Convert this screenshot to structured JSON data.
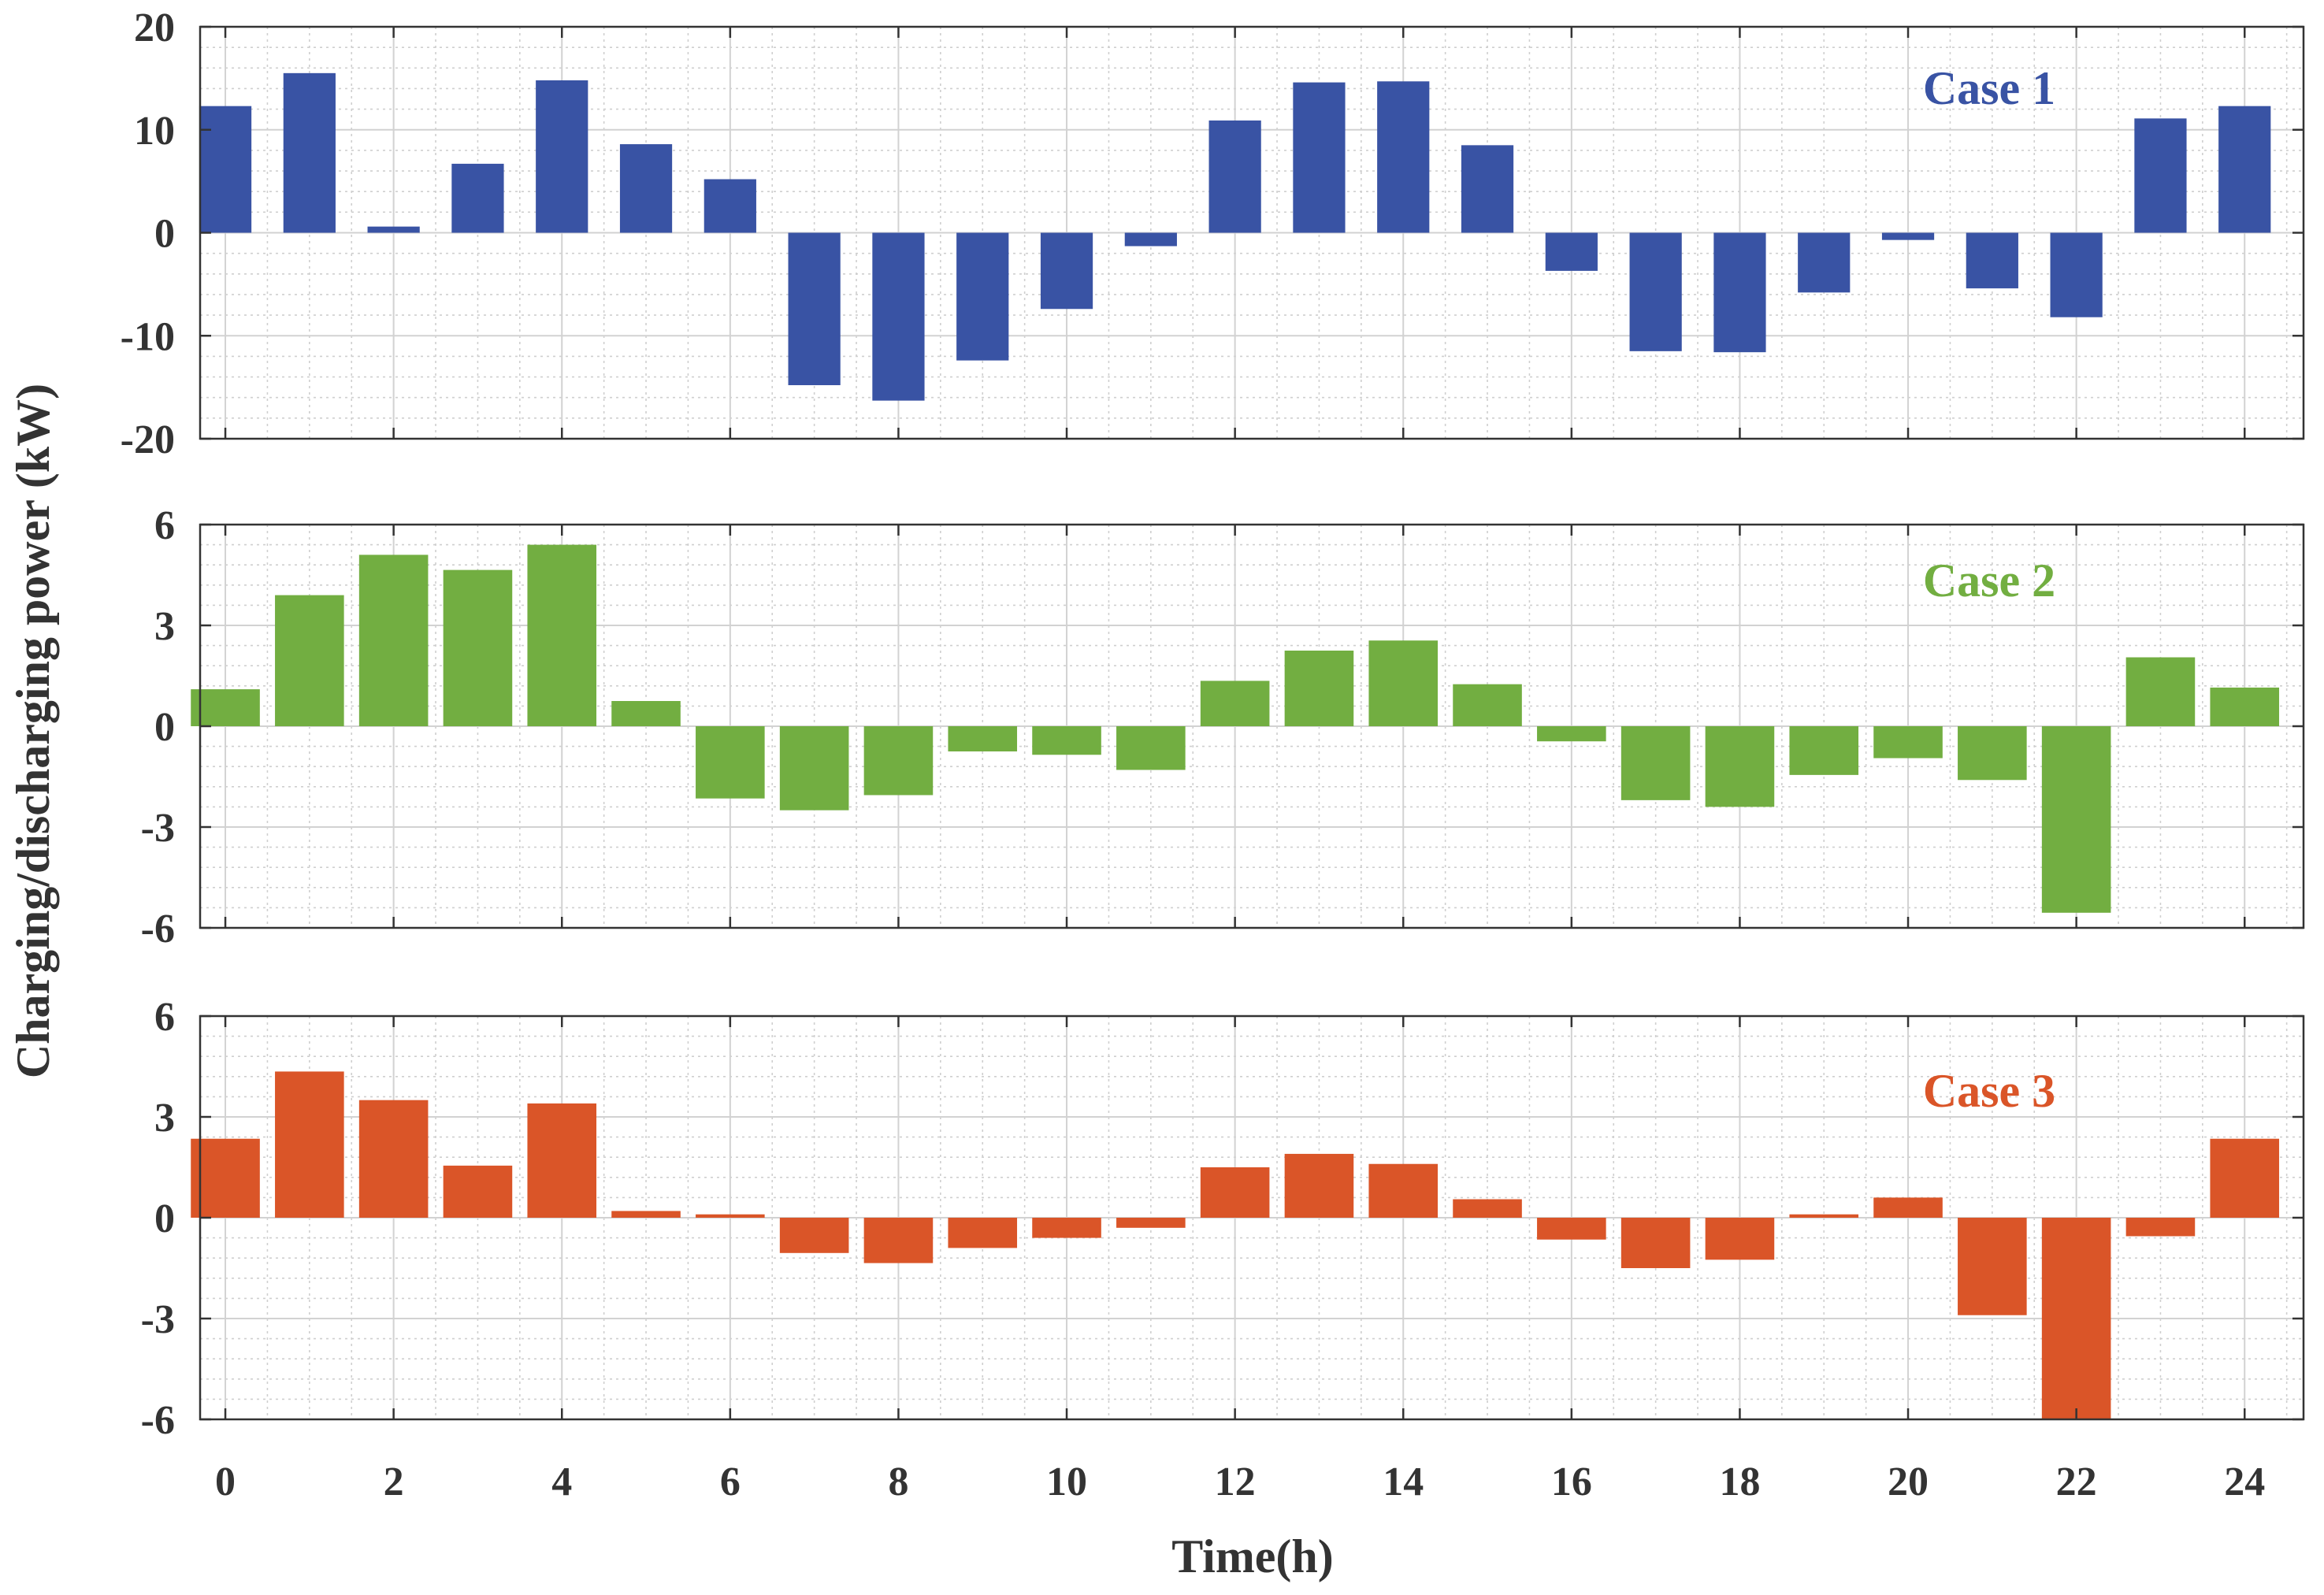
{
  "chart_data": {
    "type": "bar",
    "xlabel": "Time(h)",
    "ylabel": "Charging/discharging power (kW)",
    "x": [
      0,
      1,
      2,
      3,
      4,
      5,
      6,
      7,
      8,
      9,
      10,
      11,
      12,
      13,
      14,
      15,
      16,
      17,
      18,
      19,
      20,
      21,
      22,
      23,
      24
    ],
    "xlim": [
      -0.3,
      24.7
    ],
    "xticks": [
      "0",
      "2",
      "4",
      "6",
      "8",
      "10",
      "12",
      "14",
      "16",
      "18",
      "20",
      "22",
      "24"
    ],
    "grid": true,
    "colors": {
      "axis": "#333333",
      "text": "#333333",
      "grid_major": "#d2d2d2",
      "grid_minor": "#cfcfcf"
    },
    "panels": [
      {
        "name": "Case 1",
        "color": "#3953A4",
        "ylim": [
          -20,
          20
        ],
        "yticks": [
          "20",
          "10",
          "0",
          "-10",
          "-20"
        ],
        "bar_width": 0.62,
        "values": [
          12.3,
          15.5,
          0.6,
          6.7,
          14.8,
          8.6,
          5.2,
          -14.8,
          -16.3,
          -12.4,
          -7.4,
          -1.3,
          10.9,
          14.6,
          14.7,
          8.5,
          -3.7,
          -11.5,
          -11.6,
          -5.8,
          -0.7,
          -5.4,
          -8.2,
          11.1,
          12.3
        ]
      },
      {
        "name": "Case 2",
        "color": "#72AE41",
        "ylim": [
          -6,
          6
        ],
        "yticks": [
          "6",
          "3",
          "0",
          "-3",
          "-6"
        ],
        "bar_width": 0.82,
        "values": [
          1.1,
          3.9,
          5.1,
          4.65,
          5.4,
          0.75,
          -2.15,
          -2.5,
          -2.05,
          -0.75,
          -0.85,
          -1.3,
          1.35,
          2.25,
          2.55,
          1.25,
          -0.45,
          -2.2,
          -2.4,
          -1.45,
          -0.95,
          -1.6,
          -5.55,
          2.05,
          1.15
        ]
      },
      {
        "name": "Case 3",
        "color": "#DA5528",
        "ylim": [
          -6,
          6
        ],
        "yticks": [
          "6",
          "3",
          "0",
          "-3",
          "-6"
        ],
        "bar_width": 0.82,
        "values": [
          2.35,
          4.35,
          3.5,
          1.55,
          3.4,
          0.2,
          0.1,
          -1.05,
          -1.35,
          -0.9,
          -0.6,
          -0.3,
          1.5,
          1.9,
          1.6,
          0.55,
          -0.65,
          -1.5,
          -1.25,
          0.1,
          0.6,
          -2.9,
          -6.0,
          -0.55,
          2.35
        ]
      }
    ]
  }
}
